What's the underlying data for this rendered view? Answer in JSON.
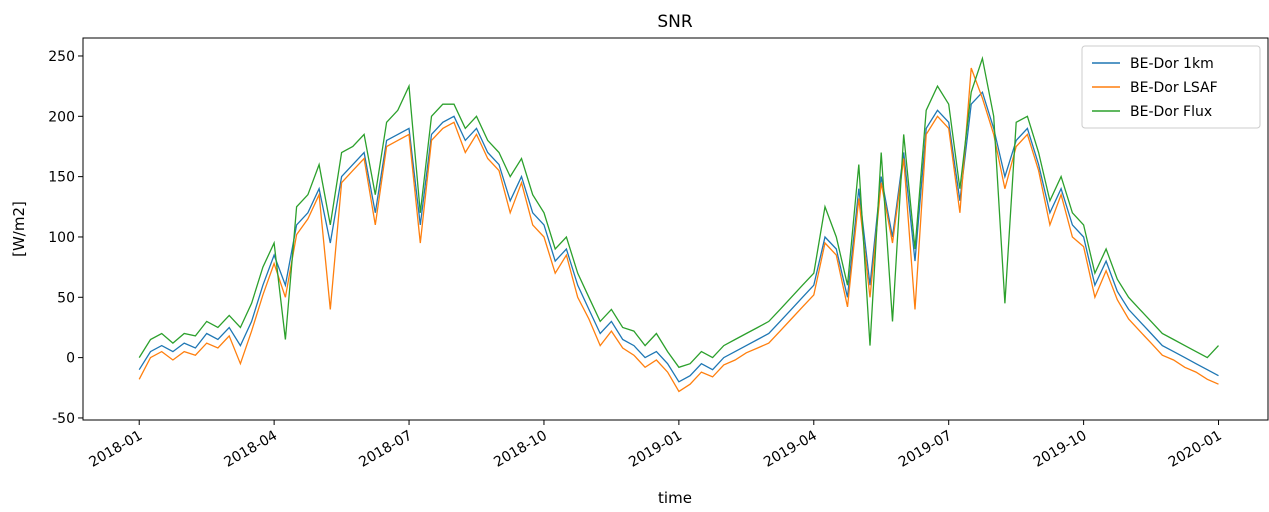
{
  "chart_data": {
    "type": "line",
    "title": "SNR",
    "xlabel": "time",
    "ylabel": "[W/m2]",
    "x": [
      0,
      0.25,
      0.5,
      0.75,
      1,
      1.25,
      1.5,
      1.75,
      2,
      2.25,
      2.5,
      2.75,
      3,
      3.25,
      3.5,
      3.75,
      4,
      4.25,
      4.5,
      4.75,
      5,
      5.25,
      5.5,
      5.75,
      6,
      6.25,
      6.5,
      6.75,
      7,
      7.25,
      7.5,
      7.75,
      8,
      8.25,
      8.5,
      8.75,
      9,
      9.25,
      9.5,
      9.75,
      10,
      10.25,
      10.5,
      10.75,
      11,
      11.25,
      11.5,
      11.75,
      12,
      12.25,
      12.5,
      12.75,
      13,
      13.25,
      13.5,
      13.75,
      14,
      14.25,
      14.5,
      14.75,
      15,
      15.25,
      15.5,
      15.75,
      16,
      16.25,
      16.5,
      16.75,
      17,
      17.25,
      17.5,
      17.75,
      18,
      18.25,
      18.5,
      18.75,
      19,
      19.25,
      19.5,
      19.75,
      20,
      20.25,
      20.5,
      20.75,
      21,
      21.25,
      21.5,
      21.75,
      22,
      22.25,
      22.5,
      22.75,
      23,
      23.25,
      23.5,
      23.75,
      24
    ],
    "series": [
      {
        "name": "BE-Dor 1km",
        "color": "#1f77b4",
        "values": [
          -10,
          5,
          10,
          5,
          12,
          8,
          20,
          15,
          25,
          10,
          30,
          60,
          85,
          60,
          110,
          120,
          140,
          95,
          150,
          160,
          170,
          120,
          180,
          185,
          190,
          110,
          185,
          195,
          200,
          180,
          190,
          170,
          160,
          130,
          150,
          120,
          110,
          80,
          90,
          60,
          40,
          20,
          30,
          15,
          10,
          0,
          5,
          -5,
          -20,
          -15,
          -5,
          -10,
          0,
          5,
          10,
          15,
          20,
          30,
          40,
          50,
          60,
          100,
          90,
          50,
          140,
          60,
          150,
          100,
          170,
          80,
          190,
          205,
          195,
          130,
          210,
          220,
          190,
          150,
          180,
          190,
          160,
          120,
          140,
          110,
          100,
          60,
          80,
          55,
          40,
          30,
          20,
          10,
          5,
          0,
          -5,
          -10,
          -15
        ]
      },
      {
        "name": "BE-Dor LSAF",
        "color": "#ff7f0e",
        "values": [
          -18,
          0,
          5,
          -2,
          5,
          2,
          12,
          8,
          18,
          -5,
          22,
          52,
          78,
          50,
          102,
          115,
          135,
          40,
          145,
          155,
          165,
          110,
          175,
          180,
          185,
          95,
          180,
          190,
          195,
          170,
          185,
          165,
          155,
          120,
          145,
          110,
          100,
          70,
          85,
          50,
          32,
          10,
          22,
          8,
          2,
          -8,
          -2,
          -12,
          -28,
          -22,
          -12,
          -16,
          -6,
          -2,
          4,
          8,
          12,
          22,
          32,
          42,
          52,
          95,
          85,
          42,
          132,
          50,
          145,
          95,
          165,
          40,
          185,
          200,
          190,
          120,
          240,
          215,
          185,
          140,
          175,
          185,
          155,
          110,
          135,
          100,
          92,
          50,
          72,
          48,
          32,
          22,
          12,
          2,
          -2,
          -8,
          -12,
          -18,
          -22
        ]
      },
      {
        "name": "BE-Dor Flux",
        "color": "#2ca02c",
        "values": [
          0,
          15,
          20,
          12,
          20,
          18,
          30,
          25,
          35,
          25,
          45,
          75,
          95,
          15,
          125,
          135,
          160,
          110,
          170,
          175,
          185,
          135,
          195,
          205,
          225,
          120,
          200,
          210,
          210,
          190,
          200,
          180,
          170,
          150,
          165,
          135,
          120,
          90,
          100,
          70,
          50,
          30,
          40,
          25,
          22,
          10,
          20,
          5,
          -8,
          -5,
          5,
          0,
          10,
          15,
          20,
          25,
          30,
          40,
          50,
          60,
          70,
          125,
          100,
          60,
          160,
          10,
          170,
          30,
          185,
          90,
          205,
          225,
          210,
          140,
          220,
          248,
          200,
          45,
          195,
          200,
          170,
          130,
          150,
          120,
          110,
          70,
          90,
          65,
          50,
          40,
          30,
          20,
          15,
          10,
          5,
          0,
          10
        ]
      }
    ],
    "xlim": [
      -1.25,
      25.1
    ],
    "ylim": [
      -51.7,
      264.9
    ],
    "xticks": [
      {
        "value": 0,
        "label": "2018-01"
      },
      {
        "value": 3,
        "label": "2018-04"
      },
      {
        "value": 6,
        "label": "2018-07"
      },
      {
        "value": 9,
        "label": "2018-10"
      },
      {
        "value": 12,
        "label": "2019-01"
      },
      {
        "value": 15,
        "label": "2019-04"
      },
      {
        "value": 18,
        "label": "2019-07"
      },
      {
        "value": 21,
        "label": "2019-10"
      },
      {
        "value": 24,
        "label": "2020-01"
      }
    ],
    "yticks": [
      -50,
      0,
      50,
      100,
      150,
      200,
      250
    ],
    "legend": "upper right"
  }
}
